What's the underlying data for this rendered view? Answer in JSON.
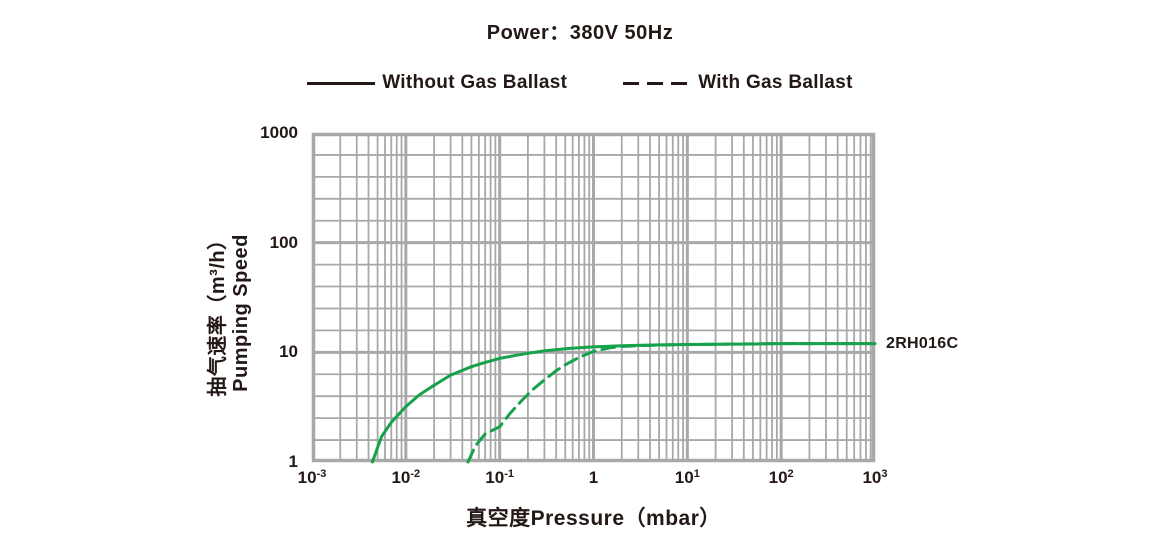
{
  "title": "Power：380V 50Hz",
  "legend": {
    "items": [
      {
        "label": "Without Gas Ballast",
        "style": "solid"
      },
      {
        "label": "With Gas Ballast",
        "style": "dashed"
      }
    ]
  },
  "model_label": "2RH016C",
  "axes": {
    "x_title": "真空度Pressure（mbar）",
    "y_title_cn": "抽气速率（m³/h）",
    "y_title_en": "Pumping Speed",
    "x_ticks": [
      {
        "base": "10",
        "exp": "-3"
      },
      {
        "base": "10",
        "exp": "-2"
      },
      {
        "base": "10",
        "exp": "-1"
      },
      {
        "base": "1",
        "exp": ""
      },
      {
        "base": "10",
        "exp": "1"
      },
      {
        "base": "10",
        "exp": "2"
      },
      {
        "base": "10",
        "exp": "3"
      }
    ],
    "y_ticks": [
      "1000",
      "100",
      "10",
      "1"
    ]
  },
  "colors": {
    "text": "#231815",
    "grid": "#a8a8a8",
    "curve": "#15a24b",
    "background": "#ffffff"
  },
  "chart_data": {
    "type": "line",
    "title": "Power：380V 50Hz",
    "xlabel": "真空度Pressure（mbar）",
    "ylabel": "抽气速率（m³/h）Pumping Speed",
    "x_scale": "log",
    "y_scale": "log",
    "xlim": [
      0.001,
      1000
    ],
    "ylim": [
      1,
      1000
    ],
    "grid": true,
    "x_minor_divisions": "log 2-9",
    "y_minor_divisions": "5 even per decade",
    "legend_position": "top",
    "units": {
      "x": "mbar",
      "y": "m3/h"
    },
    "series": [
      {
        "name": "Without Gas Ballast",
        "style": "solid",
        "points": [
          [
            0.0044,
            1.0
          ],
          [
            0.0055,
            1.7
          ],
          [
            0.007,
            2.3
          ],
          [
            0.01,
            3.2
          ],
          [
            0.014,
            4.1
          ],
          [
            0.02,
            5.0
          ],
          [
            0.03,
            6.2
          ],
          [
            0.05,
            7.4
          ],
          [
            0.07,
            8.1
          ],
          [
            0.1,
            8.8
          ],
          [
            0.15,
            9.4
          ],
          [
            0.2,
            9.8
          ],
          [
            0.3,
            10.3
          ],
          [
            0.5,
            10.8
          ],
          [
            0.7,
            11.0
          ],
          [
            1,
            11.2
          ],
          [
            2,
            11.5
          ],
          [
            5,
            11.7
          ],
          [
            10,
            11.8
          ],
          [
            50,
            11.9
          ],
          [
            100,
            12.0
          ],
          [
            1000,
            12.0
          ]
        ]
      },
      {
        "name": "With Gas Ballast",
        "style": "dashed",
        "points": [
          [
            0.046,
            1.0
          ],
          [
            0.055,
            1.4
          ],
          [
            0.07,
            1.8
          ],
          [
            0.1,
            2.1
          ],
          [
            0.13,
            2.8
          ],
          [
            0.17,
            3.6
          ],
          [
            0.22,
            4.5
          ],
          [
            0.3,
            5.6
          ],
          [
            0.4,
            6.8
          ],
          [
            0.5,
            7.7
          ],
          [
            0.7,
            9.0
          ],
          [
            1.0,
            10.2
          ],
          [
            1.5,
            11.0
          ],
          [
            2,
            11.3
          ],
          [
            3,
            11.5
          ],
          [
            5,
            11.65
          ],
          [
            10,
            11.8
          ],
          [
            100,
            12.0
          ],
          [
            1000,
            12.0
          ]
        ]
      }
    ]
  }
}
